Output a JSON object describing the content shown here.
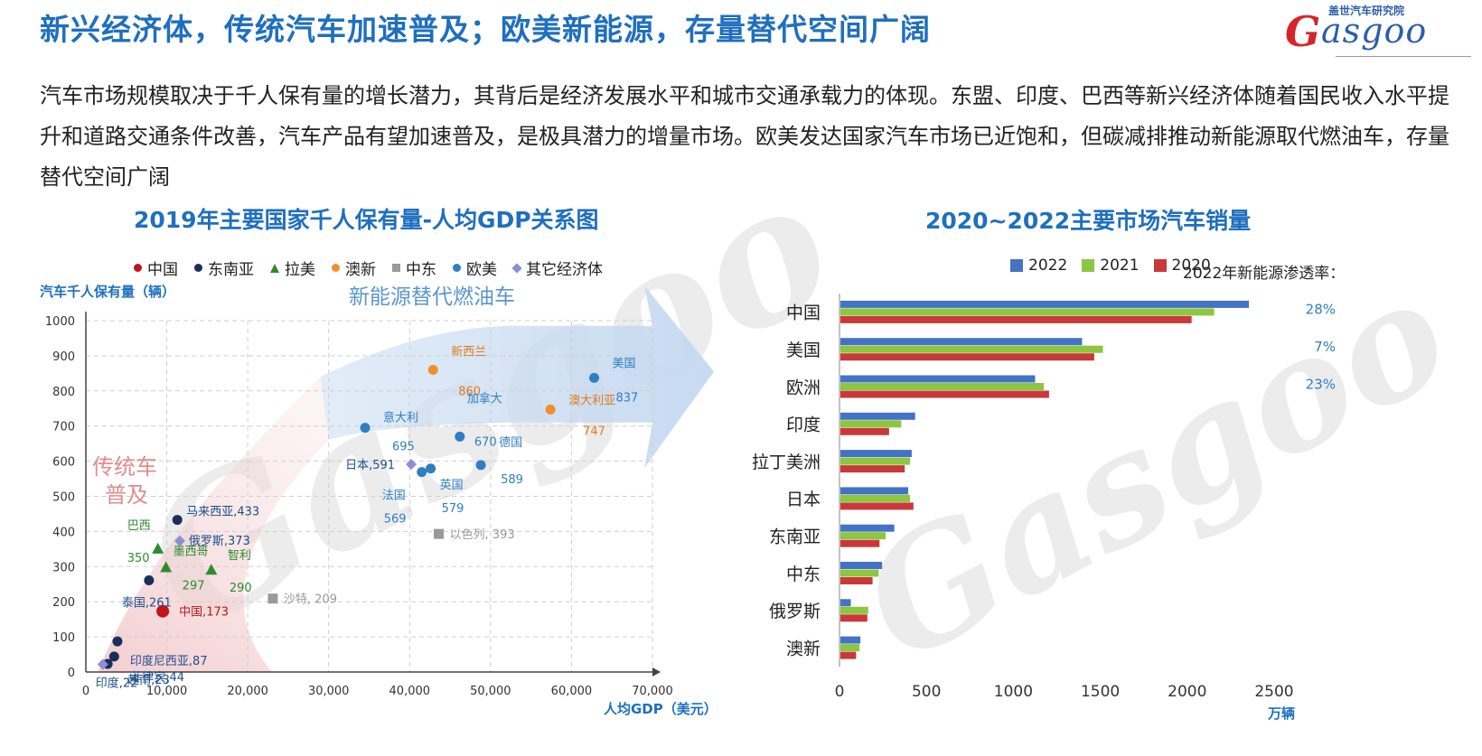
{
  "header": {
    "title": "新兴经济体，传统汽车加速普及；欧美新能源，存量替代空间广阔",
    "logo_cn": "盖世汽车研究院",
    "logo_en": "asgoo",
    "logo_g": "G"
  },
  "intro": "汽车市场规模取决于千人保有量的增长潜力，其背后是经济发展水平和城市交通承载力的体现。东盟、印度、巴西等新兴经济体随着国民收入水平提升和道路交通条件改善，汽车产品有望加速普及，是极具潜力的增量市场。欧美发达国家汽车市场已近饱和，但碳减排推动新能源取代燃油车，存量替代空间广阔",
  "watermark": "Gasgoo",
  "colors": {
    "title_blue": "#1f6fbf",
    "china": "#c0151c",
    "asean": "#1c2e5a",
    "latam": "#2e8b2e",
    "oceania": "#f28e2b",
    "mideast": "#999999",
    "euam": "#2e7fc4",
    "other": "#8b8fd6",
    "bar_2022": "#4472c4",
    "bar_2021": "#8dc63f",
    "bar_2020": "#c9393a"
  },
  "chart_data": [
    {
      "type": "scatter",
      "title": "2019年主要国家千人保有量-人均GDP关系图",
      "xlabel": "人均GDP（美元）",
      "ylabel": "汽车千人保有量（辆）",
      "xlim": [
        0,
        70000
      ],
      "ylim": [
        0,
        1000
      ],
      "x_ticks": [
        "0",
        "10,000",
        "20,000",
        "30,000",
        "40,000",
        "50,000",
        "60,000",
        "70,000"
      ],
      "y_ticks": [
        "0",
        "100",
        "200",
        "300",
        "400",
        "500",
        "600",
        "700",
        "800",
        "900",
        "1000"
      ],
      "grid": true,
      "legend": [
        {
          "name": "中国",
          "group": "china",
          "marker": "circle"
        },
        {
          "name": "东南亚",
          "group": "asean",
          "marker": "circle"
        },
        {
          "name": "拉美",
          "group": "latam",
          "marker": "triangle"
        },
        {
          "name": "澳新",
          "group": "oceania",
          "marker": "circle"
        },
        {
          "name": "中东",
          "group": "mideast",
          "marker": "square"
        },
        {
          "name": "欧美",
          "group": "euam",
          "marker": "circle"
        },
        {
          "name": "其它经济体",
          "group": "other",
          "marker": "diamond"
        }
      ],
      "annotations": {
        "traditional": "传统车\n普及",
        "nev": "新能源替代燃油车"
      },
      "points": [
        {
          "name": "中国",
          "label": "中国,173",
          "x": 9500,
          "y": 173,
          "group": "china"
        },
        {
          "name": "印度尼西亚",
          "label": "印度尼西亚,87",
          "x": 3900,
          "y": 87,
          "group": "asean"
        },
        {
          "name": "菲律宾",
          "label": "菲律宾,44",
          "x": 3500,
          "y": 44,
          "group": "asean"
        },
        {
          "name": "越南",
          "label": "越南,23",
          "x": 2700,
          "y": 23,
          "group": "asean"
        },
        {
          "name": "泰国",
          "label": "泰国,261",
          "x": 7800,
          "y": 261,
          "group": "asean"
        },
        {
          "name": "马来西亚",
          "label": "马来西亚,433",
          "x": 11300,
          "y": 433,
          "group": "asean"
        },
        {
          "name": "印度",
          "label": "印度,22",
          "x": 2100,
          "y": 22,
          "group": "other"
        },
        {
          "name": "俄罗斯",
          "label": "俄罗斯,373",
          "x": 11600,
          "y": 373,
          "group": "other"
        },
        {
          "name": "日本",
          "label": "日本,591",
          "x": 40200,
          "y": 591,
          "group": "other"
        },
        {
          "name": "巴西",
          "label": "巴西",
          "value_label": "350",
          "x": 8900,
          "y": 350,
          "group": "latam"
        },
        {
          "name": "墨西哥",
          "label": "墨西哥",
          "value_label": "297",
          "x": 9900,
          "y": 297,
          "group": "latam"
        },
        {
          "name": "智利",
          "label": "智利",
          "value_label": "290",
          "x": 15500,
          "y": 290,
          "group": "latam"
        },
        {
          "name": "沙特",
          "label": "沙特, 209",
          "x": 23100,
          "y": 209,
          "group": "mideast"
        },
        {
          "name": "以色列",
          "label": "以色列, 393",
          "x": 43600,
          "y": 393,
          "group": "mideast"
        },
        {
          "name": "新西兰",
          "label": "新西兰",
          "value_label": "860",
          "x": 42900,
          "y": 860,
          "group": "oceania"
        },
        {
          "name": "澳大利亚",
          "label": "澳大利亚",
          "value_label": "747",
          "x": 57400,
          "y": 747,
          "group": "oceania"
        },
        {
          "name": "美国",
          "label": "美国",
          "value_label": "837",
          "x": 62800,
          "y": 837,
          "group": "euam"
        },
        {
          "name": "意大利",
          "label": "意大利",
          "value_label": "695",
          "x": 34500,
          "y": 695,
          "group": "euam"
        },
        {
          "name": "加拿大",
          "label": "加拿大",
          "value_label": "670",
          "x": 46200,
          "y": 670,
          "group": "euam"
        },
        {
          "name": "德国",
          "label": "德国",
          "value_label": "589",
          "x": 48800,
          "y": 589,
          "group": "euam"
        },
        {
          "name": "英国",
          "label": "英国",
          "value_label": "579",
          "x": 42600,
          "y": 579,
          "group": "euam"
        },
        {
          "name": "法国",
          "label": "法国",
          "value_label": "569",
          "x": 41500,
          "y": 569,
          "group": "euam"
        }
      ]
    },
    {
      "type": "bar",
      "orientation": "horizontal",
      "title": "2020~2022主要市场汽车销量",
      "xlabel": "万辆",
      "xlim": [
        0,
        2500
      ],
      "x_ticks": [
        "0",
        "500",
        "1000",
        "1500",
        "2000",
        "2500"
      ],
      "categories": [
        "中国",
        "美国",
        "欧洲",
        "印度",
        "拉丁美洲",
        "日本",
        "东南亚",
        "中东",
        "俄罗斯",
        "澳新"
      ],
      "series": [
        {
          "name": "2022",
          "color_key": "bar_2022",
          "values": [
            2350,
            1390,
            1120,
            430,
            410,
            390,
            310,
            240,
            60,
            115
          ]
        },
        {
          "name": "2021",
          "color_key": "bar_2021",
          "values": [
            2150,
            1510,
            1170,
            350,
            400,
            400,
            260,
            220,
            160,
            110
          ]
        },
        {
          "name": "2020",
          "color_key": "bar_2020",
          "values": [
            2020,
            1460,
            1200,
            280,
            370,
            420,
            225,
            185,
            155,
            90
          ]
        }
      ],
      "nev_label": "2022年新能源渗透率：",
      "nev_rates": [
        {
          "category": "中国",
          "text": "28%"
        },
        {
          "category": "美国",
          "text": "7%"
        },
        {
          "category": "欧洲",
          "text": "23%"
        }
      ]
    }
  ]
}
